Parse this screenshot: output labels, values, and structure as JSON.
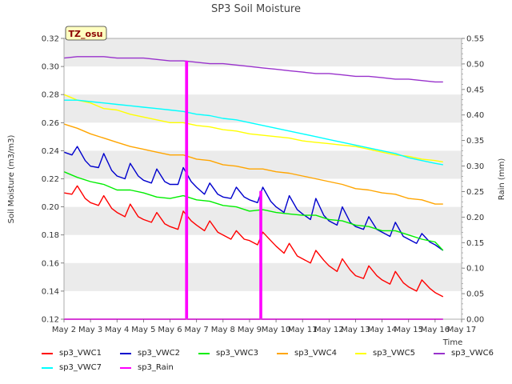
{
  "chart_data": {
    "type": "line",
    "title": "SP3 Soil Moisture",
    "xlabel": "Time",
    "ylabel": "Soil Moisture (m3/m3)",
    "y2label": "Rain (mm)",
    "site_tag": "TZ_osu",
    "ylim": [
      0.12,
      0.32
    ],
    "y2lim": [
      0.0,
      0.55
    ],
    "xlim": [
      0,
      15
    ],
    "x_tick_labels": [
      "May 2",
      "May 3",
      "May 4",
      "May 5",
      "May 6",
      "May 7",
      "May 8",
      "May 9",
      "May 10",
      "May 11",
      "May 12",
      "May 13",
      "May 14",
      "May 15",
      "May 16",
      "May 17"
    ],
    "y_ticks": [
      "0.12",
      "0.14",
      "0.16",
      "0.18",
      "0.20",
      "0.22",
      "0.24",
      "0.26",
      "0.28",
      "0.30",
      "0.32"
    ],
    "y2_ticks": [
      "0.00",
      "0.05",
      "0.10",
      "0.15",
      "0.20",
      "0.25",
      "0.30",
      "0.35",
      "0.40",
      "0.45",
      "0.50",
      "0.55"
    ],
    "grid": "horizontal bands",
    "legend_position": "bottom",
    "series": [
      {
        "name": "sp3_VWC1",
        "color": "#ff0000",
        "axis": "left",
        "x": [
          0,
          0.3,
          0.5,
          0.8,
          1,
          1.3,
          1.5,
          1.8,
          2,
          2.3,
          2.5,
          2.8,
          3,
          3.3,
          3.5,
          3.8,
          4,
          4.3,
          4.5,
          4.8,
          5,
          5.3,
          5.5,
          5.8,
          6,
          6.3,
          6.5,
          6.8,
          7,
          7.3,
          7.5,
          7.8,
          8,
          8.3,
          8.5,
          8.8,
          9,
          9.3,
          9.5,
          9.8,
          10,
          10.3,
          10.5,
          10.8,
          11,
          11.3,
          11.5,
          11.8,
          12,
          12.3,
          12.5,
          12.8,
          13,
          13.3,
          13.5,
          13.8,
          14,
          14.3
        ],
        "y": [
          0.21,
          0.209,
          0.215,
          0.206,
          0.203,
          0.201,
          0.208,
          0.199,
          0.196,
          0.193,
          0.202,
          0.193,
          0.191,
          0.189,
          0.196,
          0.188,
          0.186,
          0.184,
          0.197,
          0.19,
          0.187,
          0.183,
          0.19,
          0.182,
          0.18,
          0.177,
          0.183,
          0.177,
          0.176,
          0.173,
          0.182,
          0.176,
          0.172,
          0.167,
          0.174,
          0.165,
          0.163,
          0.16,
          0.169,
          0.162,
          0.158,
          0.154,
          0.163,
          0.155,
          0.151,
          0.149,
          0.158,
          0.151,
          0.148,
          0.145,
          0.154,
          0.146,
          0.143,
          0.14,
          0.148,
          0.142,
          0.139,
          0.136
        ]
      },
      {
        "name": "sp3_VWC2",
        "color": "#0000cd",
        "axis": "left",
        "x": [
          0,
          0.3,
          0.5,
          0.8,
          1,
          1.3,
          1.5,
          1.8,
          2,
          2.3,
          2.5,
          2.8,
          3,
          3.3,
          3.5,
          3.8,
          4,
          4.3,
          4.5,
          4.8,
          5,
          5.3,
          5.5,
          5.8,
          6,
          6.3,
          6.5,
          6.8,
          7,
          7.3,
          7.5,
          7.8,
          8,
          8.3,
          8.5,
          8.8,
          9,
          9.3,
          9.5,
          9.8,
          10,
          10.3,
          10.5,
          10.8,
          11,
          11.3,
          11.5,
          11.8,
          12,
          12.3,
          12.5,
          12.8,
          13,
          13.3,
          13.5,
          13.8,
          14,
          14.3
        ],
        "y": [
          0.239,
          0.237,
          0.243,
          0.233,
          0.229,
          0.228,
          0.238,
          0.226,
          0.222,
          0.22,
          0.231,
          0.222,
          0.219,
          0.217,
          0.227,
          0.218,
          0.216,
          0.216,
          0.228,
          0.218,
          0.214,
          0.209,
          0.217,
          0.209,
          0.207,
          0.206,
          0.214,
          0.207,
          0.205,
          0.203,
          0.214,
          0.204,
          0.2,
          0.196,
          0.208,
          0.198,
          0.195,
          0.191,
          0.206,
          0.194,
          0.19,
          0.187,
          0.2,
          0.189,
          0.186,
          0.184,
          0.193,
          0.184,
          0.182,
          0.179,
          0.189,
          0.179,
          0.177,
          0.174,
          0.181,
          0.175,
          0.173,
          0.169
        ]
      },
      {
        "name": "sp3_VWC3",
        "color": "#00ee00",
        "axis": "left",
        "x": [
          0,
          0.5,
          1,
          1.5,
          2,
          2.5,
          3,
          3.5,
          4,
          4.5,
          5,
          5.5,
          6,
          6.5,
          7,
          7.5,
          8,
          8.5,
          9,
          9.5,
          10,
          10.5,
          11,
          11.5,
          12,
          12.5,
          13,
          13.5,
          14,
          14.3
        ],
        "y": [
          0.225,
          0.221,
          0.218,
          0.216,
          0.212,
          0.212,
          0.21,
          0.207,
          0.206,
          0.208,
          0.205,
          0.204,
          0.201,
          0.2,
          0.197,
          0.198,
          0.196,
          0.195,
          0.194,
          0.194,
          0.191,
          0.19,
          0.187,
          0.186,
          0.183,
          0.183,
          0.18,
          0.177,
          0.175,
          0.169
        ]
      },
      {
        "name": "sp3_VWC4",
        "color": "#ffa500",
        "axis": "left",
        "x": [
          0,
          0.5,
          1,
          1.5,
          2,
          2.5,
          3,
          3.5,
          4,
          4.5,
          5,
          5.5,
          6,
          6.5,
          7,
          7.5,
          8,
          8.5,
          9,
          9.5,
          10,
          10.5,
          11,
          11.5,
          12,
          12.5,
          13,
          13.5,
          14,
          14.3
        ],
        "y": [
          0.259,
          0.256,
          0.252,
          0.249,
          0.246,
          0.243,
          0.241,
          0.239,
          0.237,
          0.237,
          0.234,
          0.233,
          0.23,
          0.229,
          0.227,
          0.227,
          0.225,
          0.224,
          0.222,
          0.22,
          0.218,
          0.216,
          0.213,
          0.212,
          0.21,
          0.209,
          0.206,
          0.205,
          0.202,
          0.202
        ]
      },
      {
        "name": "sp3_VWC5",
        "color": "#ffff00",
        "axis": "left",
        "x": [
          0,
          0.5,
          1,
          1.5,
          2,
          2.5,
          3,
          3.5,
          4,
          4.5,
          5,
          5.5,
          6,
          6.5,
          7,
          7.5,
          8,
          8.5,
          9,
          9.5,
          10,
          10.5,
          11,
          11.5,
          12,
          12.5,
          13,
          13.5,
          14,
          14.3
        ],
        "y": [
          0.28,
          0.276,
          0.274,
          0.27,
          0.269,
          0.266,
          0.264,
          0.262,
          0.26,
          0.26,
          0.258,
          0.257,
          0.255,
          0.254,
          0.252,
          0.251,
          0.25,
          0.249,
          0.247,
          0.246,
          0.245,
          0.244,
          0.243,
          0.241,
          0.239,
          0.237,
          0.236,
          0.234,
          0.233,
          0.232
        ]
      },
      {
        "name": "sp3_VWC6",
        "color": "#9932cc",
        "axis": "left",
        "x": [
          0,
          0.5,
          1,
          1.5,
          2,
          2.5,
          3,
          3.5,
          4,
          4.5,
          5,
          5.5,
          6,
          6.5,
          7,
          7.5,
          8,
          8.5,
          9,
          9.5,
          10,
          10.5,
          11,
          11.5,
          12,
          12.5,
          13,
          13.5,
          14,
          14.3
        ],
        "y": [
          0.306,
          0.307,
          0.307,
          0.307,
          0.306,
          0.306,
          0.306,
          0.305,
          0.304,
          0.304,
          0.303,
          0.302,
          0.302,
          0.301,
          0.3,
          0.299,
          0.298,
          0.297,
          0.296,
          0.295,
          0.295,
          0.294,
          0.293,
          0.293,
          0.292,
          0.291,
          0.291,
          0.29,
          0.289,
          0.289
        ]
      },
      {
        "name": "sp3_VWC7",
        "color": "#00ffff",
        "axis": "left",
        "x": [
          0,
          0.5,
          1,
          1.5,
          2,
          2.5,
          3,
          3.5,
          4,
          4.5,
          5,
          5.5,
          6,
          6.5,
          7,
          7.5,
          8,
          8.5,
          9,
          9.5,
          10,
          10.5,
          11,
          11.5,
          12,
          12.5,
          13,
          13.5,
          14,
          14.3
        ],
        "y": [
          0.276,
          0.276,
          0.275,
          0.274,
          0.273,
          0.272,
          0.271,
          0.27,
          0.269,
          0.268,
          0.266,
          0.265,
          0.263,
          0.262,
          0.26,
          0.258,
          0.256,
          0.254,
          0.252,
          0.25,
          0.248,
          0.246,
          0.244,
          0.242,
          0.24,
          0.238,
          0.235,
          0.233,
          0.231,
          0.23
        ]
      },
      {
        "name": "sp3_Rain",
        "color": "#ff00ff",
        "axis": "right",
        "x": [
          0,
          4.6,
          4.6,
          4.65,
          4.65,
          7.4,
          7.4,
          7.45,
          7.45,
          14.3
        ],
        "y": [
          0,
          0,
          0.505,
          0.505,
          0,
          0,
          0.25,
          0.25,
          0,
          0
        ]
      }
    ]
  }
}
